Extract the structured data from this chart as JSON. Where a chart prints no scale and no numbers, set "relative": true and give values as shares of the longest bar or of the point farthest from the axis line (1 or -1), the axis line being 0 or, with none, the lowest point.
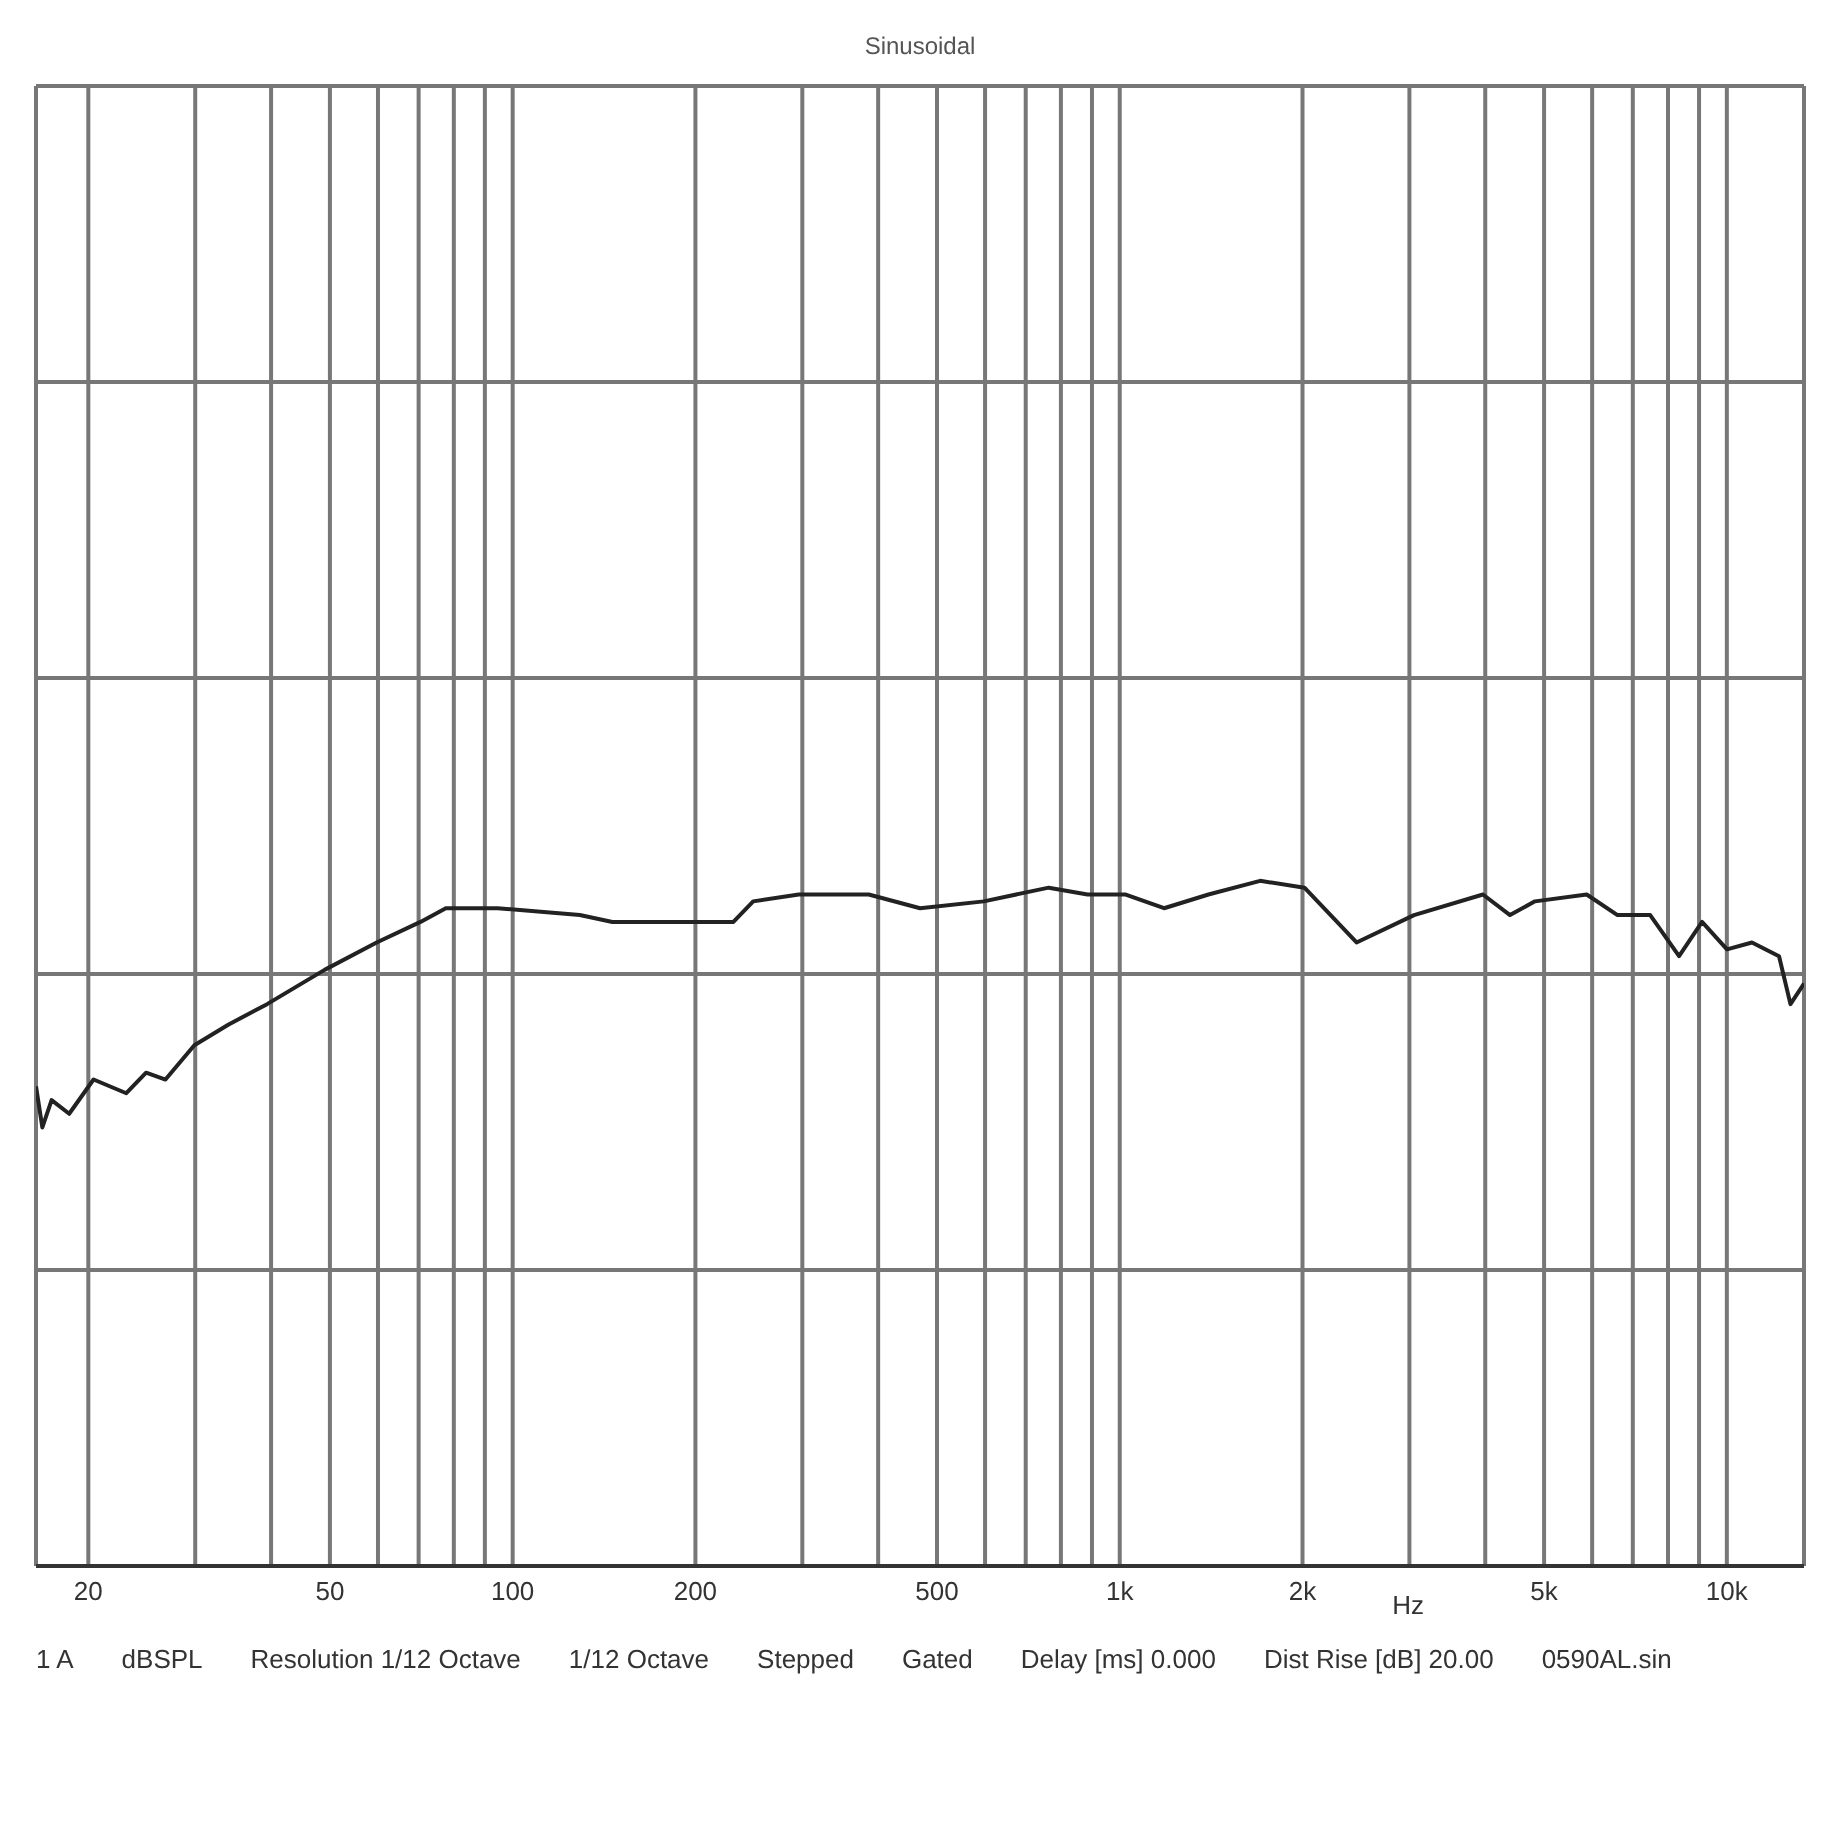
{
  "chart_data": {
    "type": "line",
    "title": "Sinusoidal",
    "xlabel": "Hz",
    "relative": true,
    "log": "x",
    "grid": true,
    "marker": "none",
    "line_style": "solid",
    "legend": false,
    "annotations": [
      "1 A",
      "dBSPL",
      "Resolution 1/12 Octave",
      "1/12 Octave",
      "Stepped",
      "Gated",
      "Delay [ms] 0.000",
      "Dist Rise [dB] 20.00",
      "0590AL.sin"
    ],
    "xlim": [
      16.4,
      13400
    ],
    "xticks": [
      20,
      {
        "value": 30,
        "label": null
      },
      {
        "value": 40,
        "label": null
      },
      50,
      {
        "value": 60,
        "label": null
      },
      {
        "value": 70,
        "label": null
      },
      {
        "value": 80,
        "label": null
      },
      {
        "value": 90,
        "label": null
      },
      100,
      200,
      {
        "value": 300,
        "label": null
      },
      {
        "value": 400,
        "label": null
      },
      500,
      {
        "value": 600,
        "label": null
      },
      {
        "value": 700,
        "label": null
      },
      {
        "value": 800,
        "label": null
      },
      {
        "value": 900,
        "label": null
      },
      {
        "value": 1000,
        "label": "1k"
      },
      {
        "value": 2000,
        "label": "2k"
      },
      {
        "value": 3000,
        "label": null
      },
      {
        "value": 4000,
        "label": null
      },
      {
        "value": 5000,
        "label": "5k"
      },
      {
        "value": 6000,
        "label": null
      },
      {
        "value": 7000,
        "label": null
      },
      {
        "value": 8000,
        "label": null
      },
      {
        "value": 9000,
        "label": null
      },
      {
        "value": 10000,
        "label": "10k"
      }
    ],
    "series": [
      {
        "color": "#222222",
        "x": [
          16.4,
          16.8,
          17.4,
          18.6,
          20.4,
          23.1,
          24.9,
          26.8,
          29.9,
          34.0,
          39.4,
          49.0,
          59.7,
          70.5,
          77.6,
          94.4,
          129,
          146,
          231,
          249,
          296,
          386,
          469,
          597,
          764,
          885,
          1023,
          1183,
          1400,
          1703,
          2015,
          2455,
          3053,
          3965,
          4394,
          4830,
          5877,
          6605,
          7478,
          8343,
          9103,
          10006,
          11000,
          12190,
          12730,
          13400
        ],
        "values": [
          0.7,
          0.64,
          0.68,
          0.66,
          0.71,
          0.69,
          0.72,
          0.71,
          0.76,
          0.79,
          0.82,
          0.87,
          0.91,
          0.94,
          0.96,
          0.96,
          0.95,
          0.94,
          0.94,
          0.97,
          0.98,
          0.98,
          0.96,
          0.97,
          0.99,
          0.98,
          0.98,
          0.96,
          0.98,
          1,
          0.99,
          0.91,
          0.95,
          0.98,
          0.95,
          0.97,
          0.98,
          0.95,
          0.95,
          0.89,
          0.94,
          0.9,
          0.91,
          0.89,
          0.82,
          0.85
        ]
      }
    ]
  }
}
